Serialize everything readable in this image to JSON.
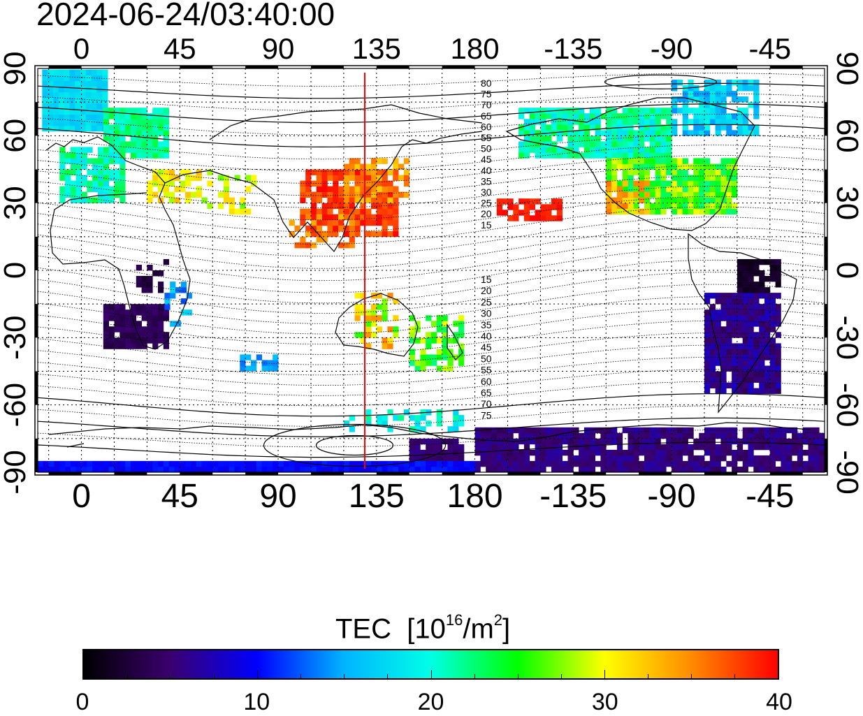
{
  "title": "2024-06-24/03:40:00",
  "map": {
    "top_lon_labels": [
      "0",
      "45",
      "90",
      "135",
      "180",
      "-135",
      "-90",
      "-45"
    ],
    "bottom_lon_labels": [
      "0",
      "45",
      "90",
      "135",
      "180",
      "-135",
      "-90",
      "-45"
    ],
    "left_lat_labels": [
      "90",
      "60",
      "30",
      "0",
      "-30",
      "-60",
      "-90"
    ],
    "right_lat_labels": [
      "90",
      "60",
      "30",
      "0",
      "-30",
      "-60",
      "-90"
    ],
    "lon_values": [
      0,
      45,
      90,
      135,
      180,
      225,
      270,
      315
    ],
    "lat_values": [
      90,
      60,
      30,
      0,
      -30,
      -60,
      -90
    ],
    "lon_range": [
      -20,
      340
    ],
    "lat_range": [
      -90,
      90
    ],
    "red_meridian_lon": 125,
    "magnetic_latitude_contour_labels_north": [
      "80",
      "75",
      "70",
      "65",
      "60",
      "55",
      "50",
      "45",
      "40",
      "35",
      "30",
      "25",
      "20",
      "15"
    ],
    "magnetic_latitude_contour_labels_south": [
      "15",
      "20",
      "25",
      "30",
      "35",
      "40",
      "45",
      "50",
      "55",
      "60",
      "65",
      "70",
      "75"
    ]
  },
  "colorbar": {
    "title_text": "TEC",
    "unit_prefix": "[10",
    "unit_exp": "16",
    "unit_mid": "/m",
    "unit_sq": "2",
    "unit_suffix": "]",
    "tick_labels": [
      "0",
      "10",
      "20",
      "30",
      "40"
    ],
    "tick_values": [
      0,
      10,
      20,
      30,
      40
    ],
    "range": [
      0,
      40
    ],
    "colors": [
      "#000000",
      "#3a006e",
      "#0000ff",
      "#00b4ff",
      "#00ffe6",
      "#00ff00",
      "#ffff00",
      "#ff8c00",
      "#ff0000"
    ]
  }
}
